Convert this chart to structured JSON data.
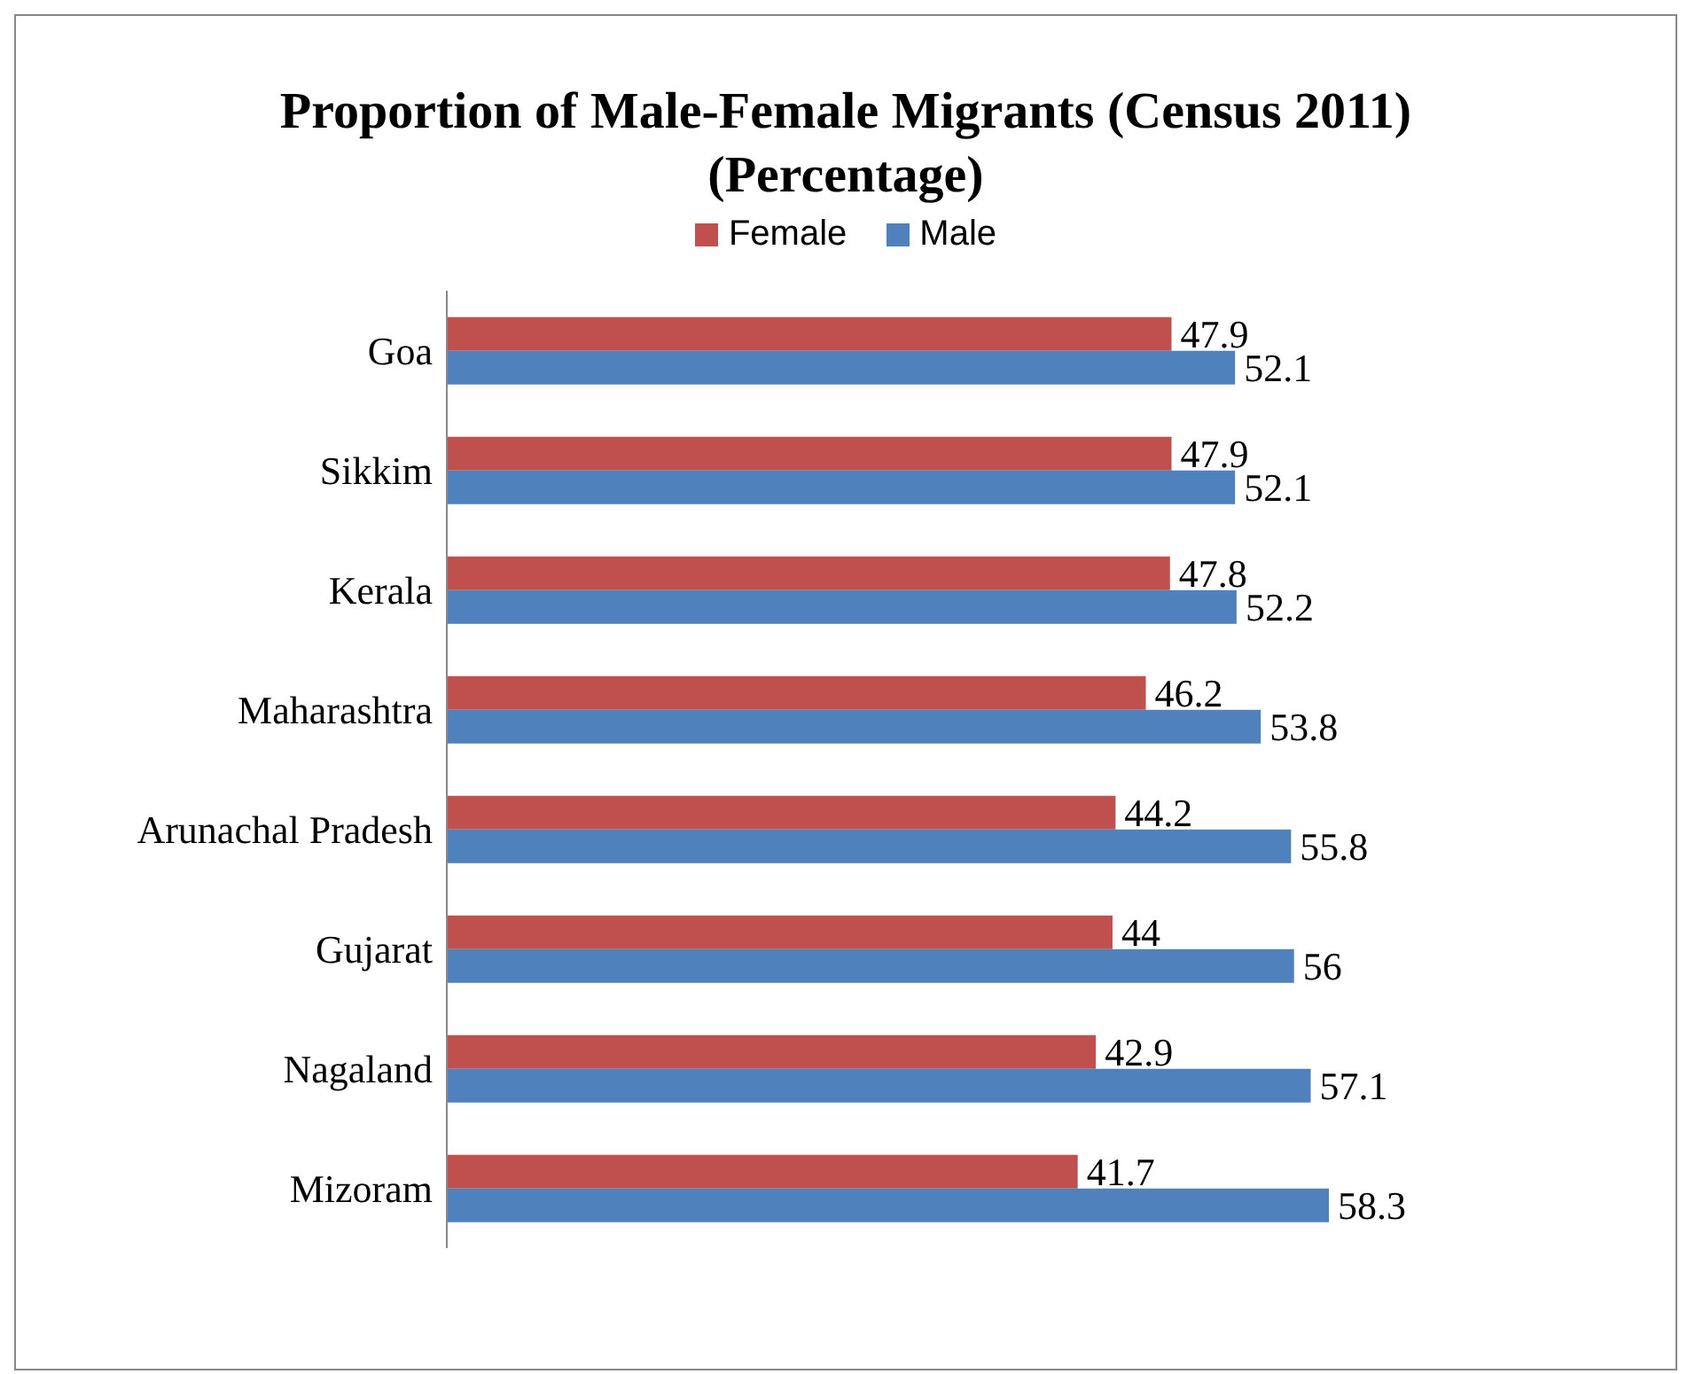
{
  "chart_data": {
    "type": "bar",
    "orientation": "horizontal",
    "title": "Proportion of Male-Female Migrants (Census 2011) (Percentage)",
    "categories": [
      "Goa",
      "Sikkim",
      "Kerala",
      "Maharashtra",
      "Arunachal Pradesh",
      "Gujarat",
      "Nagaland",
      "Mizoram"
    ],
    "series": [
      {
        "name": "Female",
        "color": "#c0504d",
        "values": [
          47.9,
          47.9,
          47.8,
          46.2,
          44.2,
          44,
          42.9,
          41.7
        ]
      },
      {
        "name": "Male",
        "color": "#4f81bd",
        "values": [
          52.1,
          52.1,
          52.2,
          53.8,
          55.8,
          56,
          57.1,
          58.3
        ]
      }
    ],
    "data_labels": true,
    "legend": "top",
    "grid": false
  }
}
